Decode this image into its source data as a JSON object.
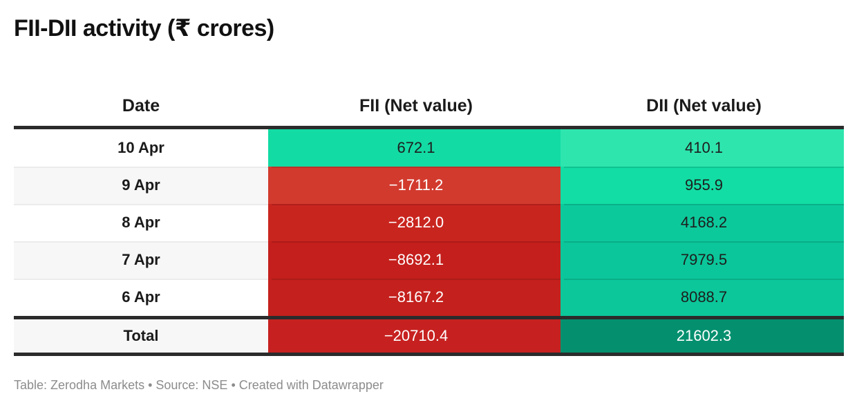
{
  "title": "FII-DII activity (₹ crores)",
  "header": {
    "date": "Date",
    "fii": "FII (Net value)",
    "dii": "DII (Net value)"
  },
  "rows": [
    {
      "date": "10 Apr",
      "fii": "672.1",
      "dii": "410.1",
      "fii_bg": "#13dba4",
      "fii_fg": "#1d1d1d",
      "dii_bg": "#2ee5ae",
      "dii_fg": "#1d1d1d"
    },
    {
      "date": "9 Apr",
      "fii": "−1711.2",
      "dii": "955.9",
      "fii_bg": "#d23a2e",
      "fii_fg": "#ffffff",
      "dii_bg": "#12dda4",
      "dii_fg": "#1d1d1d"
    },
    {
      "date": "8 Apr",
      "fii": "−2812.0",
      "dii": "4168.2",
      "fii_bg": "#c9251f",
      "fii_fg": "#ffffff",
      "dii_bg": "#0cc99c",
      "dii_fg": "#1d1d1d"
    },
    {
      "date": "7 Apr",
      "fii": "−8692.1",
      "dii": "7979.5",
      "fii_bg": "#c41f1c",
      "fii_fg": "#ffffff",
      "dii_bg": "#0bc69a",
      "dii_fg": "#1d1d1d"
    },
    {
      "date": "6 Apr",
      "fii": "−8167.2",
      "dii": "8088.7",
      "fii_bg": "#c4201d",
      "fii_fg": "#ffffff",
      "dii_bg": "#0bc79a",
      "dii_fg": "#1d1d1d"
    }
  ],
  "total": {
    "label": "Total",
    "fii": "−20710.4",
    "dii": "21602.3",
    "fii_bg": "#c62120",
    "fii_fg": "#ffffff",
    "dii_bg": "#04906f",
    "dii_fg": "#ffffff"
  },
  "footer": "Table: Zerodha Markets • Source: NSE • Created with Datawrapper",
  "colors": {
    "positive_green_bright": "#13dba4",
    "positive_green_light": "#2ee5ae",
    "positive_green_dark": "#04906f",
    "negative_red_light": "#d23a2e",
    "negative_red_dark": "#c41f1c",
    "thick_border": "#2b2b2b",
    "alt_row_bg": "#f7f7f7",
    "footer_text": "#8c8c8c"
  },
  "chart_data": {
    "type": "table",
    "title": "FII-DII activity (₹ crores)",
    "columns": [
      "Date",
      "FII (Net value)",
      "DII (Net value)"
    ],
    "rows": [
      [
        "10 Apr",
        672.1,
        410.1
      ],
      [
        "9 Apr",
        -1711.2,
        955.9
      ],
      [
        "8 Apr",
        -2812.0,
        4168.2
      ],
      [
        "7 Apr",
        -8692.1,
        7979.5
      ],
      [
        "6 Apr",
        -8167.2,
        8088.7
      ],
      [
        "Total",
        -20710.4,
        21602.3
      ]
    ],
    "layout_hints": "heatmap-colored value cells: green shades for positive values, red shades for negative values; darker shade = larger magnitude; bold total row separated by thick dark rules"
  }
}
